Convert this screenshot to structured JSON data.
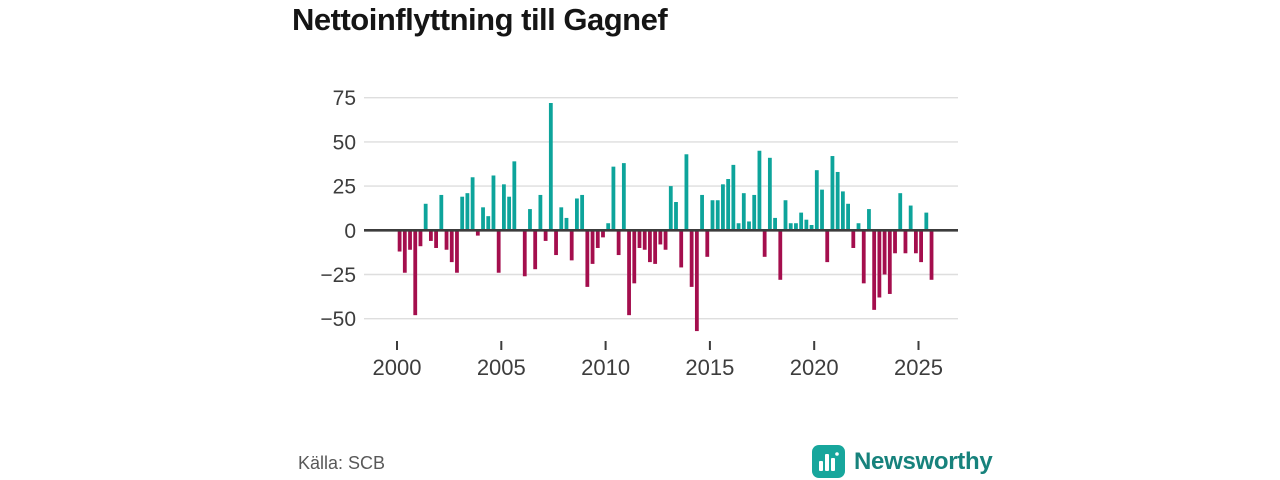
{
  "header": {
    "title": "Nettoinflyttning till Gagnef"
  },
  "footer": {
    "source": "Källa: SCB",
    "brand": "Newsworthy"
  },
  "colors": {
    "positive": "#0da49b",
    "negative": "#a40e4d",
    "grid": "#dedede",
    "zero_line": "#3c3c3c",
    "axis_text": "#3d3d3d",
    "title_text": "#151515",
    "source_text": "#595959",
    "logo_icon_bg": "#17a69c",
    "logo_bars": "#ffffff",
    "logo_text": "#17827c"
  },
  "chart_data": {
    "type": "bar",
    "title": "Nettoinflyttning till Gagnef",
    "x_start": "2000-Q1",
    "frequency": "quarterly",
    "x_ticks": [
      2000,
      2005,
      2010,
      2015,
      2020,
      2025
    ],
    "x_tick_labels": [
      "2000",
      "2005",
      "2010",
      "2015",
      "2020",
      "2025"
    ],
    "y_ticks": [
      75,
      50,
      25,
      0,
      -25,
      -50
    ],
    "y_tick_labels": [
      "75",
      "50",
      "25",
      "0",
      "−25",
      "−50"
    ],
    "ylim": [
      -62,
      80
    ],
    "grid": "horizontal",
    "legend": "none",
    "values": [
      -12,
      -24,
      -11,
      -48,
      -9,
      15,
      -6,
      -10,
      20,
      -11,
      -18,
      -24,
      19,
      21,
      30,
      -3,
      13,
      8,
      31,
      -24,
      26,
      19,
      39,
      0,
      -26,
      12,
      -22,
      20,
      -6,
      72,
      -14,
      13,
      7,
      -17,
      18,
      20,
      -32,
      -19,
      -10,
      -4,
      4,
      36,
      -14,
      38,
      -48,
      -30,
      -10,
      -11,
      -18,
      -19,
      -8,
      -11,
      25,
      16,
      -21,
      43,
      -32,
      -57,
      20,
      -15,
      17,
      17,
      26,
      29,
      37,
      4,
      21,
      5,
      20,
      45,
      -15,
      41,
      7,
      -28,
      17,
      4,
      4,
      10,
      6,
      3,
      34,
      23,
      -18,
      42,
      33,
      22,
      15,
      -10,
      4,
      -30,
      12,
      -45,
      -38,
      -25,
      -36,
      -13,
      21,
      -13,
      14,
      -13,
      -18,
      10,
      -28
    ]
  }
}
